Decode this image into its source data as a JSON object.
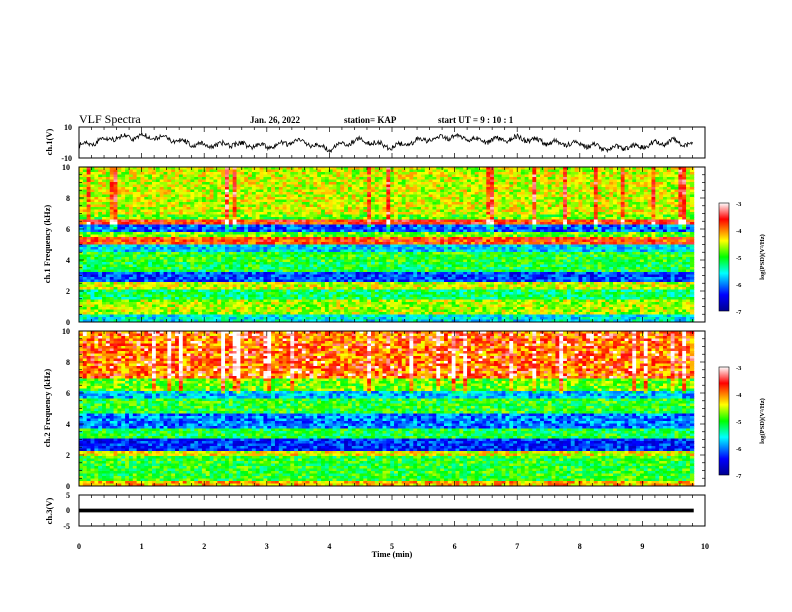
{
  "header": {
    "title": "VLF Spectra",
    "date": "Jan. 26, 2022",
    "station": "station= KAP",
    "start": "start  UT  =   9  : 10 : 1"
  },
  "chart_data": [
    {
      "type": "line",
      "id": "ch1-waveform",
      "ylabel": "ch.1(V)",
      "xlim": [
        0,
        10
      ],
      "ylim": [
        -10,
        10
      ],
      "yticks": [
        "10",
        "-10"
      ],
      "series_description_values": {
        "x": [
          0,
          0.5,
          1,
          1.5,
          2,
          2.5,
          3,
          3.5,
          4,
          4.5,
          5,
          5.5,
          6,
          6.5,
          7,
          7.5,
          8,
          8.5,
          9,
          9.5,
          9.8
        ],
        "y": [
          -2,
          3,
          4,
          2,
          -2,
          -1,
          -3,
          1,
          -4,
          2,
          -3,
          2,
          4,
          1,
          3,
          0,
          -1,
          -4,
          -2,
          1,
          -2
        ]
      }
    },
    {
      "type": "heatmap",
      "id": "ch1-spectrogram",
      "ylabel": "ch.1 Frequency (kHz)",
      "xlim": [
        0,
        10
      ],
      "ylim": [
        0,
        10
      ],
      "yticks": [
        "0",
        "2",
        "4",
        "6",
        "8",
        "10"
      ],
      "colorbar": {
        "label": "log(PSD)(V²/Hz)",
        "range": [
          -7,
          -3
        ],
        "ticks": [
          "-3",
          "-4",
          "-5",
          "-6",
          "-7"
        ]
      },
      "data_end_min": 9.82,
      "bands_khz": [
        {
          "from": 0.0,
          "to": 0.5,
          "level": -5.6
        },
        {
          "from": 0.5,
          "to": 1.5,
          "level": -4.6
        },
        {
          "from": 1.5,
          "to": 2.1,
          "level": -5.2
        },
        {
          "from": 2.1,
          "to": 2.6,
          "level": -4.5
        },
        {
          "from": 2.6,
          "to": 3.3,
          "level": -6.2
        },
        {
          "from": 3.3,
          "to": 3.8,
          "level": -5.1
        },
        {
          "from": 3.8,
          "to": 4.5,
          "level": -5.0
        },
        {
          "from": 4.5,
          "to": 5.0,
          "level": -5.7
        },
        {
          "from": 5.0,
          "to": 5.5,
          "level": -3.8
        },
        {
          "from": 5.5,
          "to": 5.8,
          "level": -4.8
        },
        {
          "from": 5.8,
          "to": 6.3,
          "level": -6.1
        },
        {
          "from": 6.3,
          "to": 6.6,
          "level": -3.7
        },
        {
          "from": 6.6,
          "to": 7.0,
          "level": -4.8
        },
        {
          "from": 7.0,
          "to": 10.0,
          "level": -4.5
        }
      ]
    },
    {
      "type": "heatmap",
      "id": "ch2-spectrogram",
      "ylabel": "ch.2 Frequency (kHz)",
      "xlim": [
        0,
        10
      ],
      "ylim": [
        0,
        10
      ],
      "yticks": [
        "0",
        "2",
        "4",
        "6",
        "8",
        "10"
      ],
      "colorbar": {
        "label": "log(PSD)(V²/Hz)",
        "range": [
          -7,
          -3
        ],
        "ticks": [
          "-3",
          "-4",
          "-5",
          "-6",
          "-7"
        ]
      },
      "data_end_min": 9.82,
      "bands_khz": [
        {
          "from": 0.0,
          "to": 0.4,
          "level": -4.2
        },
        {
          "from": 0.4,
          "to": 1.9,
          "level": -5.0
        },
        {
          "from": 1.9,
          "to": 2.2,
          "level": -4.4
        },
        {
          "from": 2.2,
          "to": 3.1,
          "level": -6.3
        },
        {
          "from": 3.1,
          "to": 3.7,
          "level": -5.1
        },
        {
          "from": 3.7,
          "to": 4.7,
          "level": -6.0
        },
        {
          "from": 4.7,
          "to": 5.6,
          "level": -5.0
        },
        {
          "from": 5.6,
          "to": 6.1,
          "level": -5.8
        },
        {
          "from": 6.1,
          "to": 7.0,
          "level": -4.8
        },
        {
          "from": 7.0,
          "to": 10.0,
          "level": -4.0
        }
      ]
    },
    {
      "type": "line",
      "id": "ch3-waveform",
      "ylabel": "ch.3(V)",
      "xlabel": "Time  (min)",
      "xlim": [
        0,
        10
      ],
      "ylim": [
        -5,
        5
      ],
      "yticks": [
        "5",
        "0",
        "-5"
      ],
      "xticks": [
        "0",
        "1",
        "2",
        "3",
        "4",
        "5",
        "6",
        "7",
        "8",
        "9",
        "10"
      ],
      "band": {
        "from": -0.6,
        "to": 0.6,
        "x_end": 9.82
      }
    }
  ],
  "colors": {
    "colormap": [
      "#00008f",
      "#0000ff",
      "#00ffff",
      "#00ff00",
      "#ffff00",
      "#ff0000",
      "#ffffff"
    ]
  }
}
